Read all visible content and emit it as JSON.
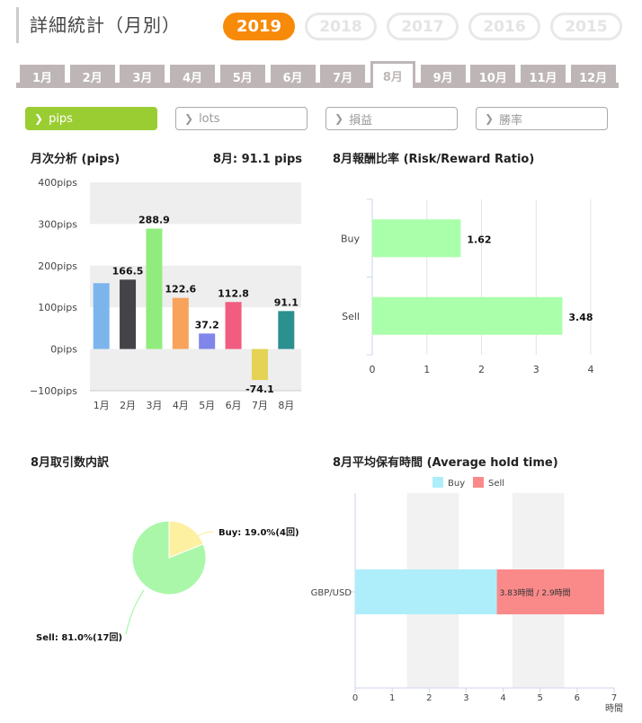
{
  "header": {
    "title": "詳細統計（月別）"
  },
  "years": [
    "2019",
    "2018",
    "2017",
    "2016",
    "2015"
  ],
  "active_year": "2019",
  "months": [
    "1月",
    "2月",
    "3月",
    "4月",
    "5月",
    "6月",
    "7月",
    "8月",
    "9月",
    "10月",
    "11月",
    "12月"
  ],
  "active_month": "8月",
  "filters": [
    {
      "label": "pips",
      "active": true
    },
    {
      "label": "lots",
      "active": false
    },
    {
      "label": "損益",
      "active": false
    },
    {
      "label": "勝率",
      "active": false
    }
  ],
  "monthly": {
    "title": "月次分析 (pips)",
    "summary": "8月:  91.1 pips"
  },
  "rr": {
    "title": "8月報酬比率 (Risk/Reward Ratio)"
  },
  "pie": {
    "title": "8月取引数内訳"
  },
  "hold": {
    "title": "8月平均保有時間 (Average hold time)"
  },
  "colors": {
    "accent": "#f78a08",
    "filter_active": "#9acd32",
    "month_tab": "#beb6b6",
    "rr_bar": "#aaffaa",
    "pie_buy": "#fdf0a0",
    "pie_sell": "#aaf7aa",
    "hold_buy": "#aeeefa",
    "hold_sell": "#fa8a8a"
  },
  "chart_data": [
    {
      "type": "bar",
      "title": "月次分析 (pips)",
      "categories": [
        "1月",
        "2月",
        "3月",
        "4月",
        "5月",
        "6月",
        "7月",
        "8月"
      ],
      "values": [
        158,
        166.5,
        288.9,
        122.6,
        37.2,
        112.8,
        -74.1,
        91.1
      ],
      "value_labels": [
        "",
        "166.5",
        "288.9",
        "122.6",
        "37.2",
        "112.8",
        "-74.1",
        "91.1"
      ],
      "colors": [
        "#7cb5ec",
        "#434348",
        "#90ed7d",
        "#f7a35c",
        "#8085e9",
        "#f15c80",
        "#e4d354",
        "#2b908f"
      ],
      "yticks": [
        "400pips",
        "300pips",
        "200pips",
        "100pips",
        "0pips",
        "−100pips"
      ],
      "ylim": [
        -100,
        400
      ]
    },
    {
      "type": "bar",
      "orientation": "horizontal",
      "title": "8月報酬比率 (Risk/Reward Ratio)",
      "categories": [
        "Buy",
        "Sell"
      ],
      "values": [
        1.62,
        3.48
      ],
      "value_labels": [
        "1.62",
        "3.48"
      ],
      "xticks": [
        "0",
        "1",
        "2",
        "3",
        "4"
      ],
      "xlim": [
        0,
        4
      ]
    },
    {
      "type": "pie",
      "title": "8月取引数内訳",
      "slices": [
        {
          "name": "Buy",
          "value": 19.0,
          "label": "Buy: 19.0%(4回)"
        },
        {
          "name": "Sell",
          "value": 81.0,
          "label": "Sell: 81.0%(17回)"
        }
      ]
    },
    {
      "type": "bar",
      "orientation": "horizontal",
      "stacked": true,
      "title": "8月平均保有時間 (Average hold time)",
      "categories": [
        "GBP/USD"
      ],
      "series": [
        {
          "name": "Buy",
          "values": [
            3.83
          ]
        },
        {
          "name": "Sell",
          "values": [
            2.9
          ]
        }
      ],
      "bar_label": "3.83時間 / 2.9時間",
      "xticks": [
        "0",
        "1",
        "2",
        "3",
        "4",
        "5",
        "6",
        "7"
      ],
      "xlabel": "時間",
      "xlim": [
        0,
        7
      ],
      "legend": "top"
    }
  ]
}
